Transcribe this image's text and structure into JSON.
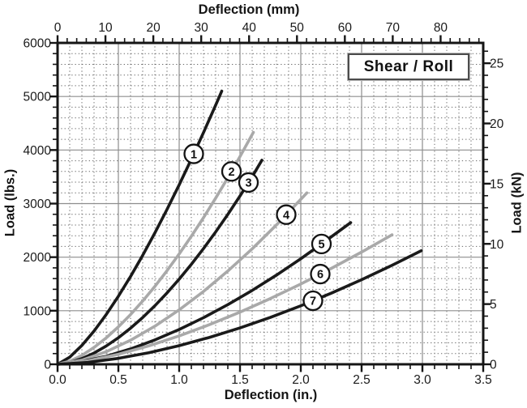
{
  "chart_data": {
    "type": "line",
    "annotation": "Shear / Roll",
    "axes": {
      "top": {
        "label": "Deflection (mm)",
        "min": 0,
        "label_max": 80,
        "major_step": 10,
        "minor_step": 2,
        "minor_max": 88,
        "mm_per_inch": 25.4
      },
      "bottom": {
        "label": "Deflection (in.)",
        "min": 0,
        "max": 3.5,
        "major_step": 0.5,
        "minor_step": 0.1
      },
      "left": {
        "label": "Load (lbs.)",
        "min": 0,
        "max": 6000,
        "major_step": 1000,
        "minor_step": 200
      },
      "right": {
        "label": "Load (kN)",
        "min": 0,
        "label_max": 25,
        "major_step": 5,
        "minor_step": 1,
        "minor_max": 26,
        "lbs_per_kn": 224.809
      }
    },
    "grid": {
      "major": "solid",
      "minor": "dotted"
    },
    "colors": {
      "black": "#1a1a1a",
      "gray": "#a9a9a9",
      "major_grid": "#8d8d8d",
      "minor_grid": "#686868",
      "frame": "#151515"
    },
    "series": [
      {
        "name": "1",
        "color": "black",
        "label_x": 1.12,
        "points": [
          [
            0,
            0
          ],
          [
            0.1,
            133
          ],
          [
            0.2,
            352
          ],
          [
            0.3,
            621
          ],
          [
            0.4,
            929
          ],
          [
            0.5,
            1270
          ],
          [
            0.6,
            1639
          ],
          [
            0.7,
            2034
          ],
          [
            0.8,
            2452
          ],
          [
            0.9,
            2892
          ],
          [
            1.0,
            3351
          ],
          [
            1.1,
            3829
          ],
          [
            1.2,
            4326
          ],
          [
            1.3,
            4838
          ],
          [
            1.35,
            5100
          ]
        ]
      },
      {
        "name": "2",
        "color": "gray",
        "label_x": 1.43,
        "points": [
          [
            0,
            0
          ],
          [
            0.1,
            57
          ],
          [
            0.2,
            167
          ],
          [
            0.3,
            315
          ],
          [
            0.4,
            493
          ],
          [
            0.5,
            699
          ],
          [
            0.6,
            928
          ],
          [
            0.7,
            1181
          ],
          [
            0.8,
            1454
          ],
          [
            0.9,
            1748
          ],
          [
            1.0,
            2060
          ],
          [
            1.1,
            2390
          ],
          [
            1.2,
            2738
          ],
          [
            1.3,
            3102
          ],
          [
            1.4,
            3482
          ],
          [
            1.5,
            3878
          ],
          [
            1.61,
            4330
          ]
        ]
      },
      {
        "name": "3",
        "color": "black",
        "label_x": 1.57,
        "points": [
          [
            0,
            0
          ],
          [
            0.1,
            33
          ],
          [
            0.2,
            106
          ],
          [
            0.3,
            210
          ],
          [
            0.4,
            341
          ],
          [
            0.5,
            496
          ],
          [
            0.6,
            674
          ],
          [
            0.7,
            873
          ],
          [
            0.8,
            1093
          ],
          [
            0.9,
            1332
          ],
          [
            1.0,
            1590
          ],
          [
            1.1,
            1866
          ],
          [
            1.2,
            2160
          ],
          [
            1.3,
            2471
          ],
          [
            1.4,
            2798
          ],
          [
            1.5,
            3142
          ],
          [
            1.6,
            3502
          ],
          [
            1.68,
            3810
          ]
        ]
      },
      {
        "name": "4",
        "color": "gray",
        "label_x": 1.88,
        "points": [
          [
            0,
            0
          ],
          [
            0.2,
            77
          ],
          [
            0.4,
            235
          ],
          [
            0.6,
            449
          ],
          [
            0.8,
            711
          ],
          [
            1.0,
            1016
          ],
          [
            1.2,
            1360
          ],
          [
            1.4,
            1741
          ],
          [
            1.6,
            2155
          ],
          [
            1.8,
            2602
          ],
          [
            2.0,
            3080
          ],
          [
            2.05,
            3200
          ]
        ]
      },
      {
        "name": "5",
        "color": "black",
        "label_x": 2.17,
        "points": [
          [
            0,
            0
          ],
          [
            0.2,
            50
          ],
          [
            0.4,
            150
          ],
          [
            0.6,
            287
          ],
          [
            0.8,
            455
          ],
          [
            1.0,
            650
          ],
          [
            1.2,
            870
          ],
          [
            1.4,
            1114
          ],
          [
            1.6,
            1379
          ],
          [
            1.8,
            1665
          ],
          [
            2.0,
            1970
          ],
          [
            2.2,
            2295
          ],
          [
            2.41,
            2645
          ]
        ]
      },
      {
        "name": "6",
        "color": "gray",
        "label_x": 2.16,
        "points": [
          [
            0,
            0
          ],
          [
            0.25,
            66
          ],
          [
            0.5,
            187
          ],
          [
            0.75,
            344
          ],
          [
            1.0,
            530
          ],
          [
            1.25,
            741
          ],
          [
            1.5,
            974
          ],
          [
            1.75,
            1227
          ],
          [
            2.0,
            1499
          ],
          [
            2.25,
            1789
          ],
          [
            2.5,
            2095
          ],
          [
            2.75,
            2418
          ]
        ]
      },
      {
        "name": "7",
        "color": "black",
        "label_x": 2.1,
        "points": [
          [
            0,
            0
          ],
          [
            0.25,
            35
          ],
          [
            0.5,
            111
          ],
          [
            0.75,
            216
          ],
          [
            1.0,
            348
          ],
          [
            1.25,
            503
          ],
          [
            1.5,
            679
          ],
          [
            1.75,
            876
          ],
          [
            2.0,
            1092
          ],
          [
            2.25,
            1327
          ],
          [
            2.5,
            1579
          ],
          [
            2.75,
            1848
          ],
          [
            2.99,
            2120
          ]
        ]
      }
    ]
  }
}
